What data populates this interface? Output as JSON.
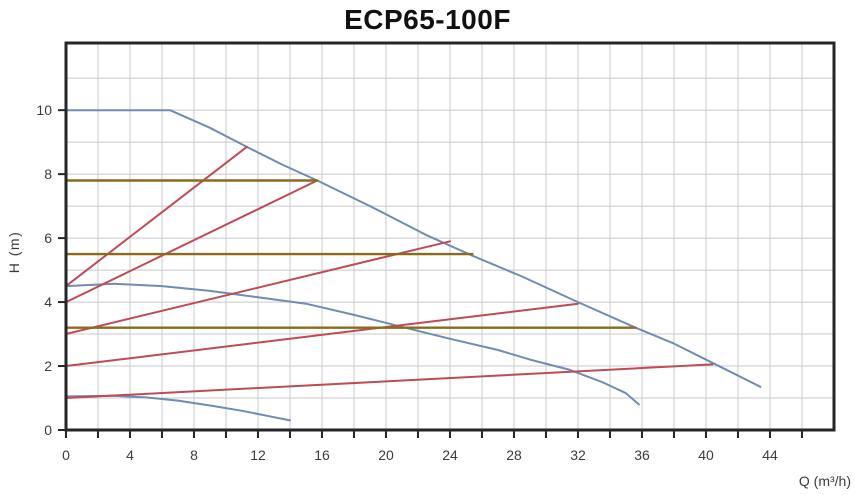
{
  "title": "ECP65-100F",
  "axis_labels": {
    "x": "Q (m³/h)",
    "y": "H (m)"
  },
  "colors": {
    "blue": "#6e8cb4",
    "red": "#bf4b55",
    "brown": "#8b6a1a",
    "grid": "#c9c9cd",
    "frame": "#26262a",
    "text": "#3c3c3c",
    "title_color": "#111111",
    "background": "#ffffff"
  },
  "chart_data": {
    "type": "line",
    "title": "ECP65-100F",
    "xlabel": "Q (m³/h)",
    "ylabel": "H (m)",
    "xlim": [
      0,
      48
    ],
    "ylim": [
      0,
      12.1
    ],
    "grid": true,
    "legend": "none",
    "x_tick_step": 2,
    "x_tick_labels": [
      0,
      4,
      8,
      12,
      16,
      20,
      24,
      28,
      32,
      36,
      40,
      44
    ],
    "y_grid_step": 1,
    "y_tick_step": 2,
    "y_tick_labels": [
      0,
      2,
      4,
      6,
      8,
      10
    ],
    "series": [
      {
        "name": "hq-curve-speed-3",
        "color": "blue",
        "points": [
          [
            0,
            10
          ],
          [
            6.5,
            10
          ],
          [
            9,
            9.45
          ],
          [
            11.3,
            8.85
          ],
          [
            13.5,
            8.3
          ],
          [
            15.7,
            7.8
          ],
          [
            19,
            7.0
          ],
          [
            22.5,
            6.1
          ],
          [
            25.4,
            5.45
          ],
          [
            28.5,
            4.8
          ],
          [
            32,
            4.0
          ],
          [
            35.6,
            3.2
          ],
          [
            38,
            2.7
          ],
          [
            40.4,
            2.1
          ],
          [
            43.4,
            1.35
          ]
        ]
      },
      {
        "name": "hq-curve-speed-2",
        "color": "blue",
        "points": [
          [
            0,
            4.5
          ],
          [
            3,
            4.57
          ],
          [
            6,
            4.5
          ],
          [
            9,
            4.35
          ],
          [
            12,
            4.15
          ],
          [
            15,
            3.95
          ],
          [
            18,
            3.6
          ],
          [
            21.2,
            3.2
          ],
          [
            24,
            2.85
          ],
          [
            27,
            2.5
          ],
          [
            29,
            2.2
          ],
          [
            31.5,
            1.88
          ],
          [
            33.5,
            1.5
          ],
          [
            35,
            1.15
          ],
          [
            35.8,
            0.8
          ]
        ]
      },
      {
        "name": "hq-curve-speed-1",
        "color": "blue",
        "points": [
          [
            0,
            1.05
          ],
          [
            3,
            1.07
          ],
          [
            5,
            1.02
          ],
          [
            7,
            0.92
          ],
          [
            9.2,
            0.75
          ],
          [
            11,
            0.6
          ],
          [
            13,
            0.4
          ],
          [
            14,
            0.3
          ]
        ]
      },
      {
        "name": "rising-line-1",
        "color": "red",
        "points": [
          [
            0,
            4.5
          ],
          [
            11.3,
            8.85
          ]
        ]
      },
      {
        "name": "rising-line-2",
        "color": "red",
        "points": [
          [
            0,
            4.0
          ],
          [
            15.7,
            7.8
          ]
        ]
      },
      {
        "name": "rising-line-3",
        "color": "red",
        "points": [
          [
            0,
            3.0
          ],
          [
            24,
            5.9
          ]
        ]
      },
      {
        "name": "rising-line-4",
        "color": "red",
        "points": [
          [
            0,
            2.0
          ],
          [
            32,
            3.95
          ]
        ]
      },
      {
        "name": "rising-line-5",
        "color": "red",
        "points": [
          [
            0,
            1.0
          ],
          [
            40.4,
            2.05
          ]
        ]
      },
      {
        "name": "duty-line-h7.8",
        "color": "brown",
        "points": [
          [
            0,
            7.8
          ],
          [
            15.7,
            7.8
          ]
        ]
      },
      {
        "name": "duty-line-h5.5",
        "color": "brown",
        "points": [
          [
            0,
            5.5
          ],
          [
            25.4,
            5.5
          ]
        ]
      },
      {
        "name": "duty-line-h3.2",
        "color": "brown",
        "points": [
          [
            0,
            3.2
          ],
          [
            35.6,
            3.2
          ]
        ]
      }
    ]
  }
}
